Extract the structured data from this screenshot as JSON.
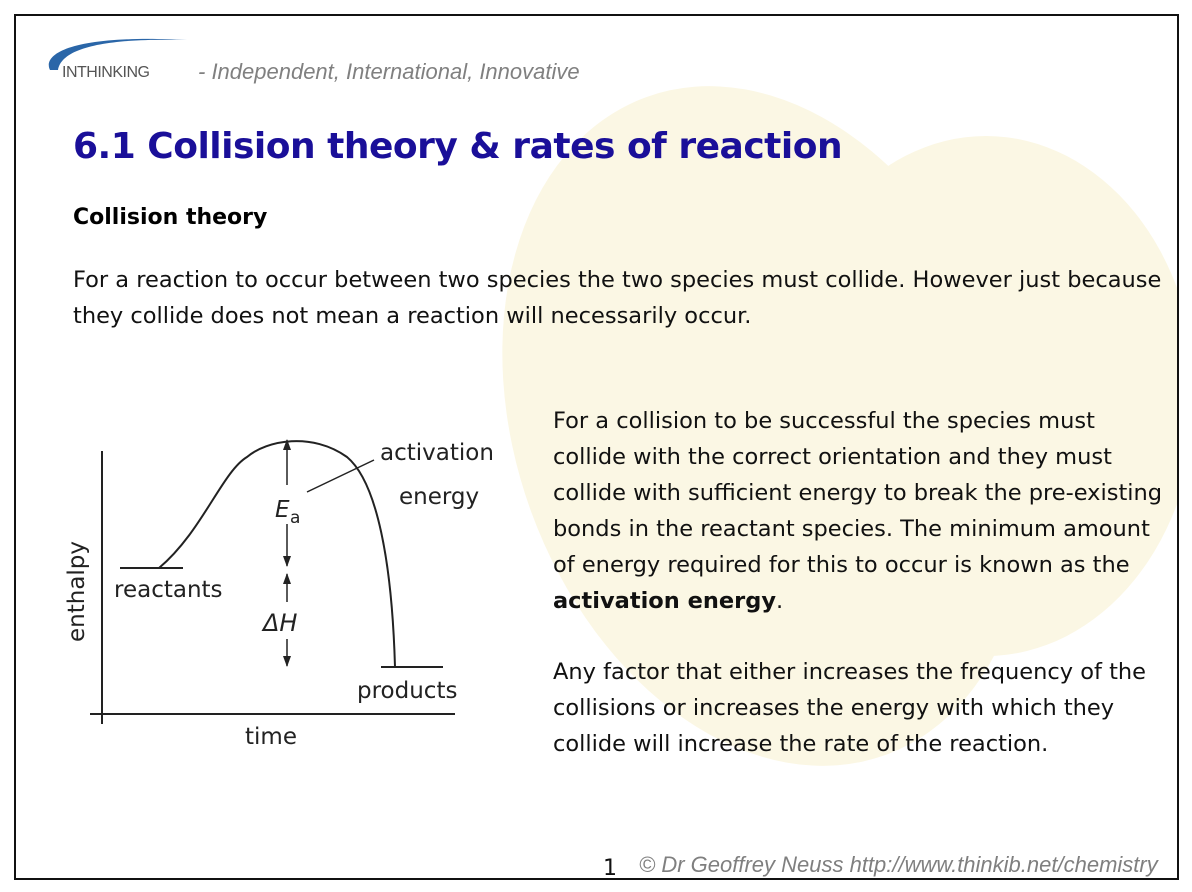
{
  "header": {
    "logo_text": "INTHINKING",
    "tagline": "- Independent, International, Innovative"
  },
  "title": "6.1 Collision theory & rates of reaction",
  "section_heading": "Collision theory",
  "intro_text": "For a reaction to occur between two species the two species must collide. However just because they collide does not mean a reaction will necessarily occur.",
  "body": {
    "para1_before": "For a collision to be successful the species must collide with the correct orientation and they must collide with sufficient energy to break the pre-existing bonds in the reactant species. The minimum amount of energy required for this to occur is known as the ",
    "para1_bold": "activation energy",
    "para1_after": ".",
    "para2": "Any factor that either increases the frequency of the collisions or increases the energy with which they collide will increase the rate of the reaction."
  },
  "diagram": {
    "y_label": "enthalpy",
    "x_label": "time",
    "reactants_label": "reactants",
    "products_label": "products",
    "activation_label_1": "activation",
    "activation_label_2": "energy",
    "ea_symbol": "E",
    "ea_subscript": "a",
    "delta_h_label": "ΔH"
  },
  "footer": {
    "page_number": "1",
    "credit": "© Dr Geoffrey Neuss http://www.thinkib.net/chemistry"
  }
}
